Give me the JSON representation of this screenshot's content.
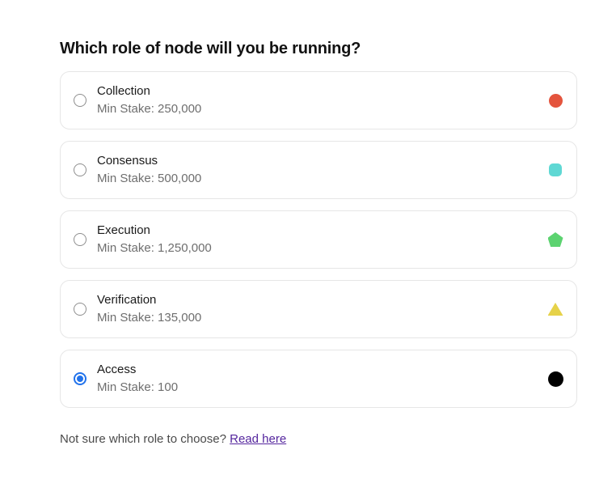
{
  "page": {
    "heading": "Which role of node will you be running?"
  },
  "options": [
    {
      "label": "Collection",
      "min_stake_label": "Min Stake: 250,000",
      "icon": "circle-icon",
      "color": "#e4543d",
      "selected": false
    },
    {
      "label": "Consensus",
      "min_stake_label": "Min Stake: 500,000",
      "icon": "rounded-square-icon",
      "color": "#5fd8d4",
      "selected": false
    },
    {
      "label": "Execution",
      "min_stake_label": "Min Stake: 1,250,000",
      "icon": "pentagon-icon",
      "color": "#5cd370",
      "selected": false
    },
    {
      "label": "Verification",
      "min_stake_label": "Min Stake: 135,000",
      "icon": "triangle-icon",
      "color": "#e6d249",
      "selected": false
    },
    {
      "label": "Access",
      "min_stake_label": "Min Stake: 100",
      "icon": "circle-icon",
      "color": "#000000",
      "selected": true
    }
  ],
  "footer": {
    "question": "Not sure which role to choose? ",
    "link_label": "Read here"
  },
  "colors": {
    "radio_selected": "#2172eb",
    "radio_border": "#8e8e8e",
    "card_border": "#e6e6e6",
    "link": "#55269e"
  }
}
